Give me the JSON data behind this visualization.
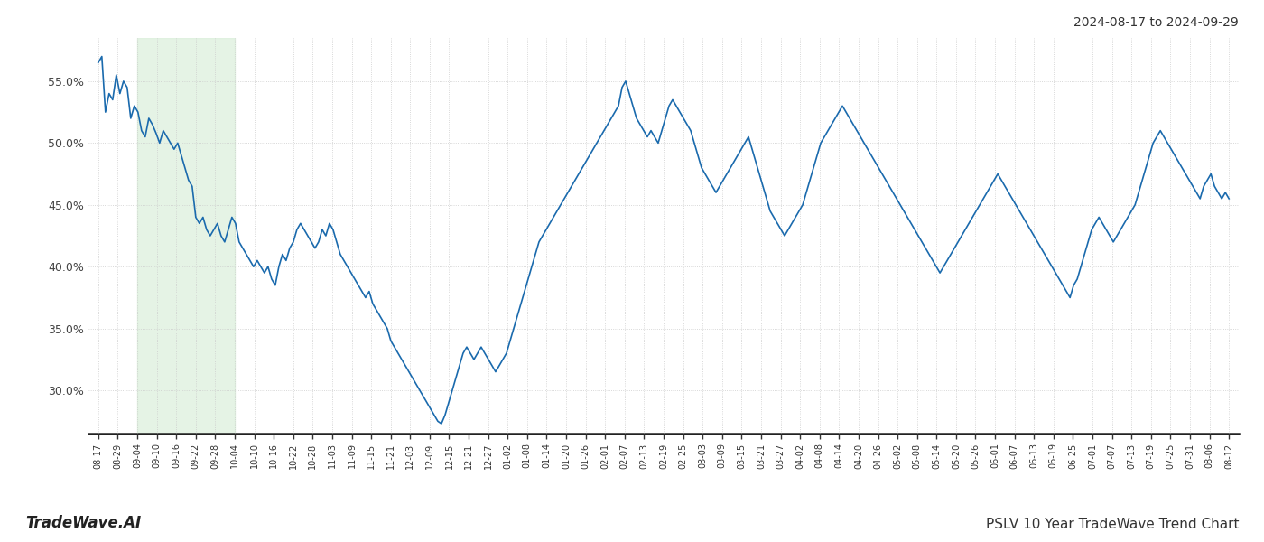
{
  "title_top_right": "2024-08-17 to 2024-09-29",
  "title_bottom_left": "TradeWave.AI",
  "title_bottom_right": "PSLV 10 Year TradeWave Trend Chart",
  "line_color": "#1a6aad",
  "line_width": 1.2,
  "shade_color": "#d4ecd4",
  "shade_alpha": 0.6,
  "background_color": "#ffffff",
  "grid_color": "#cccccc",
  "ylim": [
    26.5,
    58.5
  ],
  "yticks": [
    30.0,
    35.0,
    40.0,
    45.0,
    50.0,
    55.0
  ],
  "x_labels": [
    "08-17",
    "08-29",
    "09-04",
    "09-10",
    "09-16",
    "09-22",
    "09-28",
    "10-04",
    "10-10",
    "10-16",
    "10-22",
    "10-28",
    "11-03",
    "11-09",
    "11-15",
    "11-21",
    "12-03",
    "12-09",
    "12-15",
    "12-21",
    "12-27",
    "01-02",
    "01-08",
    "01-14",
    "01-20",
    "01-26",
    "02-01",
    "02-07",
    "02-13",
    "02-19",
    "02-25",
    "03-03",
    "03-09",
    "03-15",
    "03-21",
    "03-27",
    "04-02",
    "04-08",
    "04-14",
    "04-20",
    "04-26",
    "05-02",
    "05-08",
    "05-14",
    "05-20",
    "05-26",
    "06-01",
    "06-07",
    "06-13",
    "06-19",
    "06-25",
    "07-01",
    "07-07",
    "07-13",
    "07-19",
    "07-25",
    "07-31",
    "08-06",
    "08-12"
  ],
  "shade_start_label": "09-04",
  "shade_end_label": "09-28",
  "values": [
    56.5,
    57.0,
    52.5,
    54.0,
    53.5,
    55.5,
    54.0,
    55.0,
    54.5,
    52.0,
    53.0,
    52.5,
    51.0,
    50.5,
    52.0,
    51.5,
    50.8,
    50.0,
    51.0,
    50.5,
    50.0,
    49.5,
    50.0,
    49.0,
    48.0,
    47.0,
    46.5,
    44.0,
    43.5,
    44.0,
    43.0,
    42.5,
    43.0,
    43.5,
    42.5,
    42.0,
    43.0,
    44.0,
    43.5,
    42.0,
    41.5,
    41.0,
    40.5,
    40.0,
    40.5,
    40.0,
    39.5,
    40.0,
    39.0,
    38.5,
    40.0,
    41.0,
    40.5,
    41.5,
    42.0,
    43.0,
    43.5,
    43.0,
    42.5,
    42.0,
    41.5,
    42.0,
    43.0,
    42.5,
    43.5,
    43.0,
    42.0,
    41.0,
    40.5,
    40.0,
    39.5,
    39.0,
    38.5,
    38.0,
    37.5,
    38.0,
    37.0,
    36.5,
    36.0,
    35.5,
    35.0,
    34.0,
    33.5,
    33.0,
    32.5,
    32.0,
    31.5,
    31.0,
    30.5,
    30.0,
    29.5,
    29.0,
    28.5,
    28.0,
    27.5,
    27.3,
    28.0,
    29.0,
    30.0,
    31.0,
    32.0,
    33.0,
    33.5,
    33.0,
    32.5,
    33.0,
    33.5,
    33.0,
    32.5,
    32.0,
    31.5,
    32.0,
    32.5,
    33.0,
    34.0,
    35.0,
    36.0,
    37.0,
    38.0,
    39.0,
    40.0,
    41.0,
    42.0,
    42.5,
    43.0,
    43.5,
    44.0,
    44.5,
    45.0,
    45.5,
    46.0,
    46.5,
    47.0,
    47.5,
    48.0,
    48.5,
    49.0,
    49.5,
    50.0,
    50.5,
    51.0,
    51.5,
    52.0,
    52.5,
    53.0,
    54.5,
    55.0,
    54.0,
    53.0,
    52.0,
    51.5,
    51.0,
    50.5,
    51.0,
    50.5,
    50.0,
    51.0,
    52.0,
    53.0,
    53.5,
    53.0,
    52.5,
    52.0,
    51.5,
    51.0,
    50.0,
    49.0,
    48.0,
    47.5,
    47.0,
    46.5,
    46.0,
    46.5,
    47.0,
    47.5,
    48.0,
    48.5,
    49.0,
    49.5,
    50.0,
    50.5,
    49.5,
    48.5,
    47.5,
    46.5,
    45.5,
    44.5,
    44.0,
    43.5,
    43.0,
    42.5,
    43.0,
    43.5,
    44.0,
    44.5,
    45.0,
    46.0,
    47.0,
    48.0,
    49.0,
    50.0,
    50.5,
    51.0,
    51.5,
    52.0,
    52.5,
    53.0,
    52.5,
    52.0,
    51.5,
    51.0,
    50.5,
    50.0,
    49.5,
    49.0,
    48.5,
    48.0,
    47.5,
    47.0,
    46.5,
    46.0,
    45.5,
    45.0,
    44.5,
    44.0,
    43.5,
    43.0,
    42.5,
    42.0,
    41.5,
    41.0,
    40.5,
    40.0,
    39.5,
    40.0,
    40.5,
    41.0,
    41.5,
    42.0,
    42.5,
    43.0,
    43.5,
    44.0,
    44.5,
    45.0,
    45.5,
    46.0,
    46.5,
    47.0,
    47.5,
    47.0,
    46.5,
    46.0,
    45.5,
    45.0,
    44.5,
    44.0,
    43.5,
    43.0,
    42.5,
    42.0,
    41.5,
    41.0,
    40.5,
    40.0,
    39.5,
    39.0,
    38.5,
    38.0,
    37.5,
    38.5,
    39.0,
    40.0,
    41.0,
    42.0,
    43.0,
    43.5,
    44.0,
    43.5,
    43.0,
    42.5,
    42.0,
    42.5,
    43.0,
    43.5,
    44.0,
    44.5,
    45.0,
    46.0,
    47.0,
    48.0,
    49.0,
    50.0,
    50.5,
    51.0,
    50.5,
    50.0,
    49.5,
    49.0,
    48.5,
    48.0,
    47.5,
    47.0,
    46.5,
    46.0,
    45.5,
    46.5,
    47.0,
    47.5,
    46.5,
    46.0,
    45.5,
    46.0,
    45.5
  ]
}
